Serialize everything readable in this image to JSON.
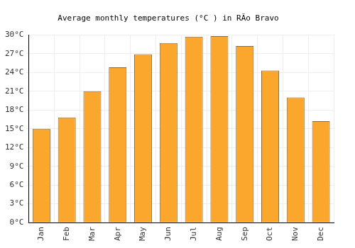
{
  "chart_data": {
    "type": "bar",
    "title": "Average monthly temperatures (°C ) in RÃo Bravo",
    "categories": [
      "Jan",
      "Feb",
      "Mar",
      "Apr",
      "May",
      "Jun",
      "Jul",
      "Aug",
      "Sep",
      "Oct",
      "Nov",
      "Dec"
    ],
    "values": [
      15.0,
      16.8,
      21.0,
      24.8,
      26.9,
      28.7,
      29.7,
      29.8,
      28.2,
      24.3,
      20.0,
      16.2
    ],
    "color": "#fba72d",
    "ylim": [
      0,
      30
    ],
    "yticks": [
      {
        "value": 0,
        "label": "0°C"
      },
      {
        "value": 3,
        "label": "3°C"
      },
      {
        "value": 6,
        "label": "6°C"
      },
      {
        "value": 9,
        "label": "9°C"
      },
      {
        "value": 12,
        "label": "12°C"
      },
      {
        "value": 15,
        "label": "15°C"
      },
      {
        "value": 18,
        "label": "18°C"
      },
      {
        "value": 21,
        "label": "21°C"
      },
      {
        "value": 24,
        "label": "24°C"
      },
      {
        "value": 27,
        "label": "27°C"
      },
      {
        "value": 30,
        "label": "30°C"
      }
    ],
    "grid": true
  }
}
